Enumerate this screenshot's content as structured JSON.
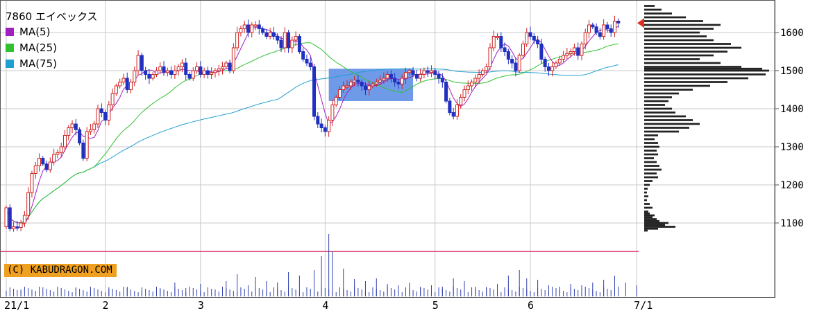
{
  "chart_data": {
    "type": "candlestick",
    "title": "7860 エイベックス",
    "legend": [
      {
        "name": "MA(5)",
        "color": "#a020c0"
      },
      {
        "name": "MA(25)",
        "color": "#30c030"
      },
      {
        "name": "MA(75)",
        "color": "#20a0d0"
      }
    ],
    "copyright": "(C) KABUDRAGON.COM",
    "x_tick_labels": [
      "21/1",
      "2",
      "3",
      "4",
      "5",
      "6",
      "7/1"
    ],
    "y_ticks": [
      1100,
      1200,
      1300,
      1400,
      1500,
      1600
    ],
    "ylim": [
      1000,
      1680
    ],
    "current_price": 1625,
    "reference_line": 1025,
    "shaded_zone": {
      "from_day": 88,
      "to_day": 111,
      "low": 1420,
      "high": 1505
    },
    "ma25_end": 1570,
    "ma75_end": 1515,
    "closes": [
      1140,
      1085,
      1090,
      1088,
      1100,
      1120,
      1180,
      1230,
      1250,
      1270,
      1255,
      1240,
      1260,
      1280,
      1285,
      1300,
      1330,
      1350,
      1360,
      1345,
      1310,
      1270,
      1340,
      1345,
      1360,
      1400,
      1390,
      1370,
      1410,
      1440,
      1460,
      1470,
      1480,
      1450,
      1470,
      1500,
      1540,
      1500,
      1490,
      1480,
      1490,
      1500,
      1510,
      1495,
      1500,
      1490,
      1500,
      1510,
      1520,
      1490,
      1480,
      1500,
      1510,
      1490,
      1500,
      1490,
      1495,
      1500,
      1505,
      1510,
      1520,
      1500,
      1560,
      1600,
      1610,
      1620,
      1600,
      1620,
      1620,
      1610,
      1600,
      1590,
      1600,
      1590,
      1580,
      1560,
      1600,
      1560,
      1580,
      1590,
      1550,
      1530,
      1520,
      1510,
      1380,
      1360,
      1350,
      1340,
      1370,
      1410,
      1430,
      1450,
      1460,
      1460,
      1470,
      1475,
      1470,
      1460,
      1450,
      1460,
      1465,
      1470,
      1475,
      1480,
      1490,
      1480,
      1470,
      1465,
      1480,
      1495,
      1500,
      1490,
      1480,
      1490,
      1500,
      1495,
      1500,
      1490,
      1480,
      1470,
      1420,
      1390,
      1380,
      1410,
      1430,
      1450,
      1460,
      1470,
      1480,
      1490,
      1500,
      1510,
      1560,
      1590,
      1590,
      1560,
      1550,
      1530,
      1520,
      1500,
      1540,
      1570,
      1600,
      1590,
      1580,
      1570,
      1530,
      1510,
      1500,
      1510,
      1520,
      1530,
      1540,
      1545,
      1550,
      1560,
      1540,
      1570,
      1600,
      1620,
      1615,
      1600,
      1590,
      1620,
      1610,
      1600,
      1630,
      1625
    ],
    "volume_profile": [
      [
        1080,
        5
      ],
      [
        1085,
        20
      ],
      [
        1090,
        45
      ],
      [
        1095,
        30
      ],
      [
        1100,
        35
      ],
      [
        1105,
        22
      ],
      [
        1110,
        18
      ],
      [
        1115,
        12
      ],
      [
        1120,
        15
      ],
      [
        1125,
        8
      ],
      [
        1130,
        6
      ],
      [
        1140,
        12
      ],
      [
        1150,
        8
      ],
      [
        1160,
        4
      ],
      [
        1170,
        6
      ],
      [
        1180,
        4
      ],
      [
        1190,
        5
      ],
      [
        1200,
        8
      ],
      [
        1210,
        12
      ],
      [
        1220,
        20
      ],
      [
        1230,
        18
      ],
      [
        1240,
        25
      ],
      [
        1250,
        22
      ],
      [
        1260,
        18
      ],
      [
        1270,
        14
      ],
      [
        1280,
        20
      ],
      [
        1290,
        18
      ],
      [
        1300,
        22
      ],
      [
        1310,
        20
      ],
      [
        1320,
        15
      ],
      [
        1330,
        20
      ],
      [
        1340,
        50
      ],
      [
        1350,
        65
      ],
      [
        1360,
        80
      ],
      [
        1370,
        70
      ],
      [
        1380,
        60
      ],
      [
        1390,
        45
      ],
      [
        1400,
        40
      ],
      [
        1410,
        30
      ],
      [
        1420,
        35
      ],
      [
        1430,
        40
      ],
      [
        1440,
        50
      ],
      [
        1450,
        70
      ],
      [
        1460,
        95
      ],
      [
        1470,
        120
      ],
      [
        1480,
        150
      ],
      [
        1490,
        175
      ],
      [
        1500,
        180
      ],
      [
        1505,
        170
      ],
      [
        1510,
        140
      ],
      [
        1520,
        110
      ],
      [
        1530,
        80
      ],
      [
        1540,
        100
      ],
      [
        1550,
        120
      ],
      [
        1560,
        140
      ],
      [
        1570,
        125
      ],
      [
        1580,
        100
      ],
      [
        1590,
        90
      ],
      [
        1600,
        80
      ],
      [
        1610,
        100
      ],
      [
        1620,
        110
      ],
      [
        1630,
        85
      ],
      [
        1640,
        60
      ],
      [
        1650,
        40
      ],
      [
        1660,
        25
      ],
      [
        1670,
        15
      ]
    ],
    "volume_bars": [
      [
        0,
        8
      ],
      [
        4,
        10
      ],
      [
        9,
        14
      ],
      [
        14,
        8
      ],
      [
        19,
        12
      ],
      [
        23,
        8
      ],
      [
        28,
        10
      ],
      [
        33,
        14
      ],
      [
        37,
        8
      ],
      [
        42,
        10
      ],
      [
        46,
        20
      ],
      [
        49,
        12
      ],
      [
        53,
        18
      ],
      [
        57,
        10
      ],
      [
        60,
        22
      ],
      [
        63,
        32
      ],
      [
        66,
        16
      ],
      [
        68,
        28
      ],
      [
        71,
        22
      ],
      [
        74,
        20
      ],
      [
        77,
        35
      ],
      [
        80,
        30
      ],
      [
        84,
        38
      ],
      [
        86,
        58
      ],
      [
        88,
        90
      ],
      [
        89,
        65
      ],
      [
        92,
        40
      ],
      [
        95,
        25
      ],
      [
        98,
        22
      ],
      [
        101,
        26
      ],
      [
        104,
        18
      ],
      [
        107,
        16
      ],
      [
        110,
        20
      ],
      [
        113,
        12
      ],
      [
        116,
        16
      ],
      [
        119,
        14
      ],
      [
        122,
        26
      ],
      [
        125,
        22
      ],
      [
        128,
        14
      ],
      [
        131,
        12
      ],
      [
        134,
        18
      ],
      [
        137,
        30
      ],
      [
        140,
        38
      ],
      [
        142,
        26
      ],
      [
        145,
        24
      ],
      [
        148,
        16
      ],
      [
        151,
        14
      ],
      [
        154,
        18
      ],
      [
        157,
        16
      ],
      [
        160,
        20
      ],
      [
        163,
        24
      ],
      [
        166,
        30
      ],
      [
        169,
        20
      ],
      [
        172,
        16
      ]
    ]
  }
}
